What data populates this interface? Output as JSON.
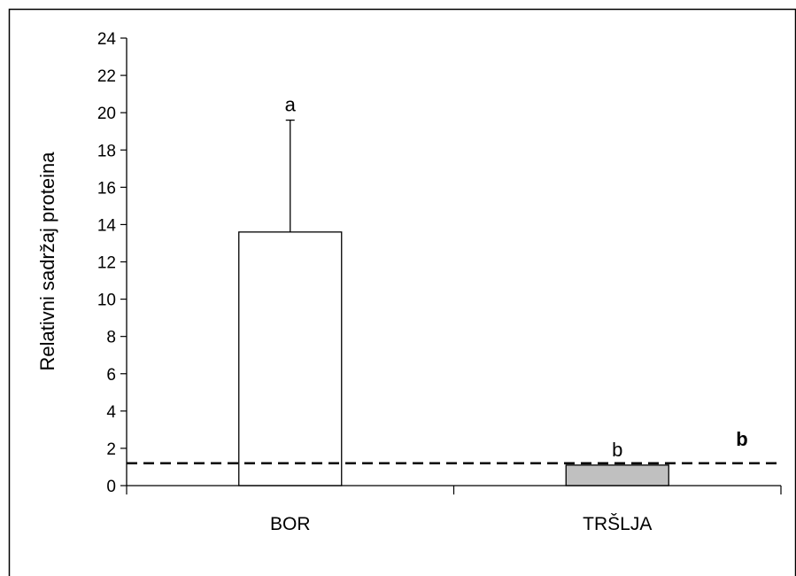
{
  "chart_data": {
    "type": "bar",
    "categories": [
      "BOR",
      "TRŠLJA"
    ],
    "values": [
      13.6,
      1.1
    ],
    "error_plus": [
      6.0,
      0
    ],
    "bar_colors": [
      "#ffffff",
      "#c0c0c0"
    ],
    "ylabel": "Relativni sadržaj proteina",
    "xlabel": "",
    "ylim": [
      0,
      24
    ],
    "yticks": [
      0,
      2,
      4,
      6,
      8,
      10,
      12,
      14,
      16,
      18,
      20,
      22,
      24
    ],
    "reference_line": {
      "value": 1.2,
      "style": "dashed"
    },
    "significance_labels": [
      "a",
      "b"
    ],
    "extra_label": "b",
    "grid": false,
    "legend": "none"
  }
}
